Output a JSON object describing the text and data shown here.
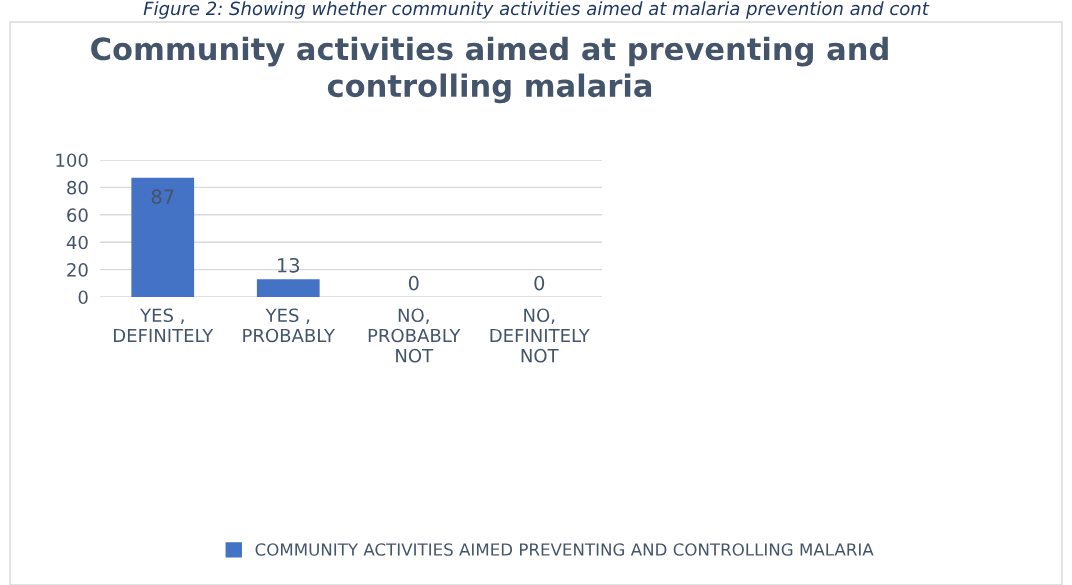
{
  "chart_data": {
    "type": "bar",
    "title": "Community activities aimed at preventing and\ncontrolling malaria",
    "categories": [
      "YES ,\nDEFINITELY",
      "YES ,\nPROBABLY",
      "NO,\nPROBABLY\nNOT",
      "NO,\nDEFINITELY\nNOT"
    ],
    "series": [
      {
        "name": "COMMUNITY ACTIVITIES AIMED PREVENTING AND CONTROLLING MALARIA",
        "color": "#4472c4",
        "values": [
          87,
          13,
          0,
          0
        ]
      }
    ],
    "ylim": [
      0,
      100
    ],
    "yticks": [
      0,
      20,
      40,
      60,
      80,
      100
    ],
    "grid": "y",
    "legend": "bottom",
    "data_labels": true,
    "annotations": [
      "Figure 2: Showing whether community activities aimed at malaria prevention and cont"
    ]
  }
}
